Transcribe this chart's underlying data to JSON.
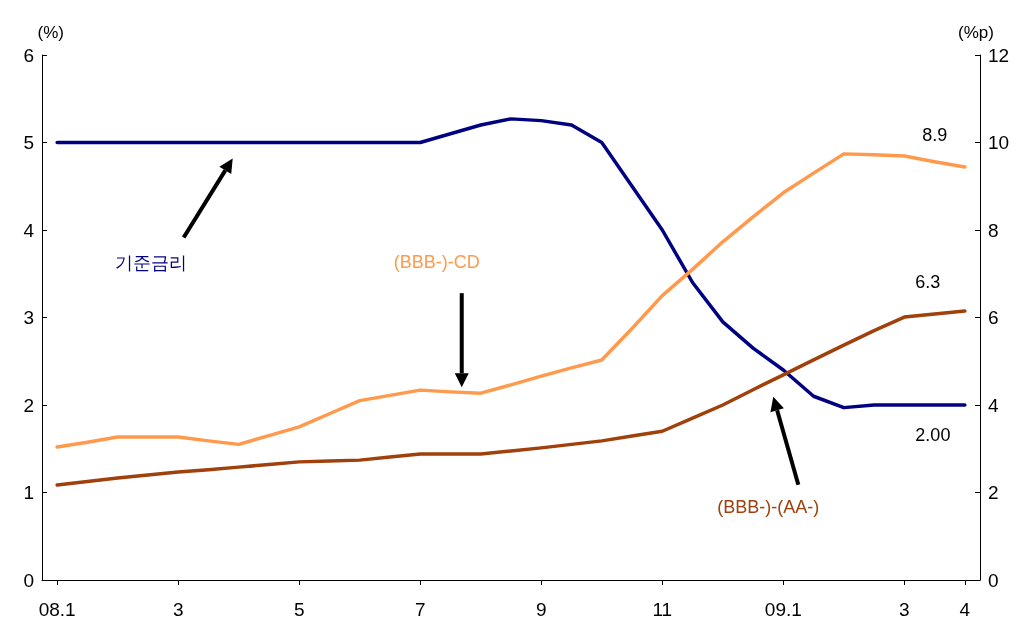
{
  "chart_data": {
    "type": "line",
    "ylabel": "(%)",
    "y2label": "(%p)",
    "categories": [
      "08.1",
      null,
      null,
      null,
      "3",
      null,
      null,
      null,
      "5",
      null,
      null,
      null,
      "7",
      null,
      null,
      null,
      "9",
      null,
      null,
      null,
      "11",
      null,
      null,
      null,
      "09.1",
      null,
      null,
      null,
      "3",
      null,
      "4"
    ],
    "ylim": [
      0,
      6
    ],
    "yticks": [
      0,
      1,
      2,
      3,
      4,
      5,
      6
    ],
    "y2lim": [
      0,
      12
    ],
    "y2ticks": [
      0,
      2,
      4,
      6,
      8,
      10,
      12
    ],
    "series": [
      {
        "name": "기준금리",
        "color": "#000080",
        "values": [
          5.0,
          5.0,
          5.0,
          5.0,
          5.0,
          5.0,
          5.0,
          5.0,
          5.0,
          5.0,
          5.0,
          5.0,
          5.0,
          5.1,
          5.2,
          5.27,
          5.25,
          5.2,
          5.0,
          4.5,
          4.0,
          3.4,
          2.95,
          2.65,
          2.4,
          2.1,
          1.97,
          2.0,
          2.0,
          2.0,
          2.0
        ]
      },
      {
        "name": "(BBB-)-CD",
        "color": "#ff9a4d",
        "axis": "y2",
        "values": [
          3.04,
          3.15,
          3.27,
          3.27,
          3.27,
          3.18,
          3.1,
          3.3,
          3.5,
          3.8,
          4.1,
          4.22,
          4.34,
          4.3,
          4.27,
          4.46,
          4.66,
          4.85,
          5.03,
          5.75,
          6.5,
          7.1,
          7.73,
          8.3,
          8.85,
          9.3,
          9.74,
          9.72,
          9.69,
          9.56,
          9.44
        ]
      },
      {
        "name": "(BBB-)-(AA-)",
        "color": "#a0400b",
        "axis": "y2",
        "values": [
          2.17,
          2.25,
          2.33,
          2.4,
          2.47,
          2.52,
          2.58,
          2.64,
          2.7,
          2.72,
          2.74,
          2.81,
          2.88,
          2.88,
          2.88,
          2.95,
          3.02,
          3.1,
          3.18,
          3.29,
          3.4,
          3.7,
          4.0,
          4.35,
          4.69,
          5.03,
          5.37,
          5.7,
          6.01,
          6.08,
          6.15
        ]
      }
    ],
    "annotations": [
      "2.00",
      "8.9",
      "6.3"
    ],
    "marker": "none",
    "line_style": "solid",
    "grid": false,
    "legend": false
  }
}
